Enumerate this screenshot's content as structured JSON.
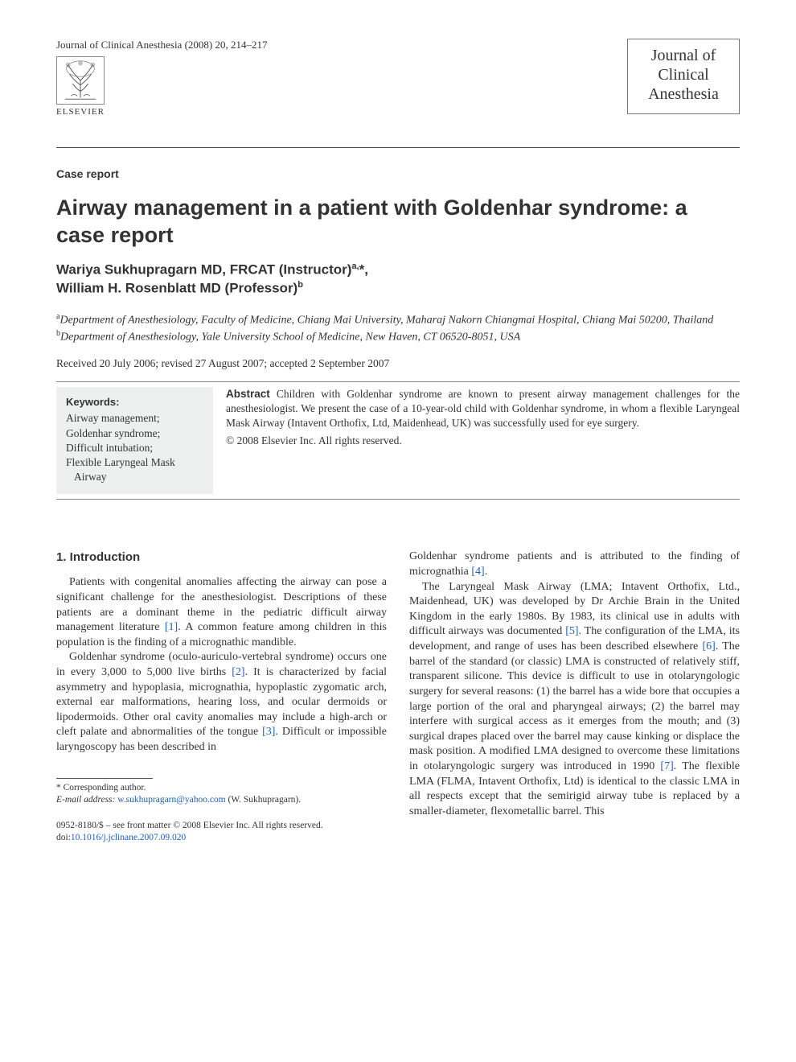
{
  "header": {
    "journal_ref": "Journal of Clinical Anesthesia (2008) 20, 214–217",
    "logo_text": "ELSEVIER",
    "journal_box_line1": "Journal of",
    "journal_box_line2": "Clinical",
    "journal_box_line3": "Anesthesia"
  },
  "article": {
    "type": "Case report",
    "title": "Airway management in a patient with Goldenhar syndrome: a case report",
    "authors_html": "Wariya Sukhupragarn MD, FRCAT (Instructor)<sup>a,</sup>*,<br>William H. Rosenblatt MD (Professor)<sup>b</sup>",
    "affiliations": [
      {
        "sup": "a",
        "text": "Department of Anesthesiology, Faculty of Medicine, Chiang Mai University, Maharaj Nakorn Chiangmai Hospital, Chiang Mai 50200, Thailand"
      },
      {
        "sup": "b",
        "text": "Department of Anesthesiology, Yale University School of Medicine, New Haven, CT 06520-8051, USA"
      }
    ],
    "dates": "Received 20 July 2006; revised 27 August 2007; accepted 2 September 2007"
  },
  "keywords": {
    "title": "Keywords:",
    "items": [
      "Airway management;",
      "Goldenhar syndrome;",
      "Difficult intubation;",
      "Flexible Laryngeal Mask Airway"
    ]
  },
  "abstract": {
    "lead": "Abstract",
    "text": " Children with Goldenhar syndrome are known to present airway management challenges for the anesthesiologist. We present the case of a 10-year-old child with Goldenhar syndrome, in whom a flexible Laryngeal Mask Airway (Intavent Orthofix, Ltd, Maidenhead, UK) was successfully used for eye surgery.",
    "copyright": "© 2008 Elsevier Inc. All rights reserved."
  },
  "section1": {
    "heading": "1. Introduction",
    "p1_pre": "Patients with congenital anomalies affecting the airway can pose a significant challenge for the anesthesiologist. Descriptions of these patients are a dominant theme in the pediatric difficult airway management literature ",
    "p1_ref": "[1]",
    "p1_post": ". A common feature among children in this population is the finding of a micrognathic mandible.",
    "p2_pre": "Goldenhar syndrome (oculo-auriculo-vertebral syndrome) occurs one in every 3,000 to 5,000 live births ",
    "p2_ref": "[2]",
    "p2_mid": ". It is characterized by facial asymmetry and hypoplasia, micrognathia, hypoplastic zygomatic arch, external ear malformations, hearing loss, and ocular dermoids or lipodermoids. Other oral cavity anomalies may include a high-arch or cleft palate and abnormalities of the tongue ",
    "p2_ref2": "[3]",
    "p2_post": ". Difficult or impossible laryngoscopy has been described in",
    "col2_p1_pre": "Goldenhar syndrome patients and is attributed to the finding of micrognathia ",
    "col2_p1_ref": "[4]",
    "col2_p1_post": ".",
    "col2_p2_pre": "The Laryngeal Mask Airway (LMA; Intavent Orthofix, Ltd., Maidenhead, UK) was developed by Dr Archie Brain in the United Kingdom in the early 1980s. By 1983, its clinical use in adults with difficult airways was documented ",
    "col2_p2_ref": "[5]",
    "col2_p2_mid": ". The configuration of the LMA, its development, and range of uses has been described elsewhere ",
    "col2_p2_ref2": "[6]",
    "col2_p2_mid2": ". The barrel of the standard (or classic) LMA is constructed of relatively stiff, transparent silicone. This device is difficult to use in otolaryngologic surgery for several reasons: (1) the barrel has a wide bore that occupies a large portion of the oral and pharyngeal airways; (2) the barrel may interfere with surgical access as it emerges from the mouth; and (3) surgical drapes placed over the barrel may cause kinking or displace the mask position. A modified LMA designed to overcome these limitations in otolaryngologic surgery was introduced in 1990 ",
    "col2_p2_ref3": "[7]",
    "col2_p2_post": ". The flexible LMA (FLMA, Intavent Orthofix, Ltd) is identical to the classic LMA in all respects except that the semirigid airway tube is replaced by a smaller-diameter, flexometallic barrel. This"
  },
  "footnotes": {
    "corr": "* Corresponding author.",
    "email_label": "E-mail address:",
    "email": "w.sukhupragarn@yahoo.com",
    "email_author": " (W. Sukhupragarn)."
  },
  "bottom": {
    "line1": "0952-8180/$ – see front matter © 2008 Elsevier Inc. All rights reserved.",
    "doi_label": "doi:",
    "doi": "10.1016/j.jclinane.2007.09.020"
  },
  "colors": {
    "text": "#333333",
    "link": "#2060c0",
    "keyword_bg": "#eef0f0",
    "rule": "#444444",
    "thin_rule": "#888888"
  }
}
